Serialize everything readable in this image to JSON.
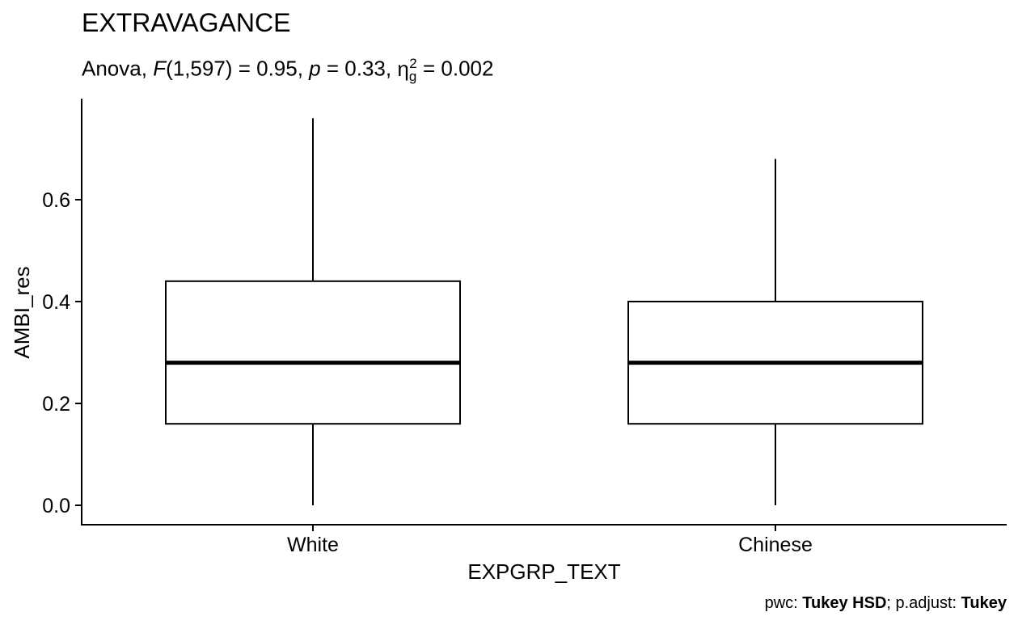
{
  "chart_data": {
    "type": "box",
    "title": "EXTRAVAGANCE",
    "subtitle": {
      "test": "Anova",
      "F_symbol": "F",
      "F_df": "(1,597)",
      "F_value": "0.95",
      "p_symbol": "p",
      "p_value": "0.33",
      "eta_symbol": "η",
      "eta_sub": "g",
      "eta_sup": "2",
      "eta_value": "0.002"
    },
    "caption": {
      "pwc_label": "pwc: ",
      "pwc_method": "Tukey HSD",
      "padj_label": "; p.adjust: ",
      "padj_method": "Tukey"
    },
    "xlabel": "EXPGRP_TEXT",
    "ylabel": "AMBI_res",
    "ylim": [
      -0.04,
      0.8
    ],
    "yticks": [
      0.0,
      0.2,
      0.4,
      0.6
    ],
    "ytick_labels": [
      "0.0",
      "0.2",
      "0.4",
      "0.6"
    ],
    "categories": [
      "White",
      "Chinese"
    ],
    "boxes": [
      {
        "category": "White",
        "min": 0.0,
        "q1": 0.16,
        "median": 0.28,
        "q3": 0.44,
        "max": 0.76
      },
      {
        "category": "Chinese",
        "min": 0.0,
        "q1": 0.16,
        "median": 0.28,
        "q3": 0.4,
        "max": 0.68
      }
    ],
    "grid": false,
    "legend": "none"
  }
}
